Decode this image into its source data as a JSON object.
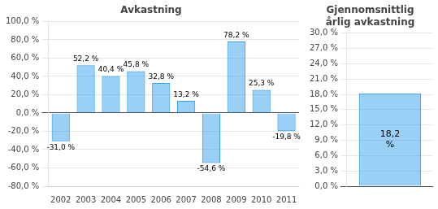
{
  "chart_data": [
    {
      "type": "bar",
      "title": "Avkastning",
      "categories": [
        "2002",
        "2003",
        "2004",
        "2005",
        "2006",
        "2007",
        "2008",
        "2009",
        "2010",
        "2011"
      ],
      "values": [
        -31.0,
        52.2,
        40.4,
        45.8,
        32.8,
        13.2,
        -54.6,
        78.2,
        25.3,
        -19.8
      ],
      "value_labels": [
        "-31,0 %",
        "52,2 %",
        "40,4 %",
        "45,8 %",
        "32,8 %",
        "13,2 %",
        "-54,6 %",
        "78,2 %",
        "25,3 %",
        "-19,8 %"
      ],
      "data_labels": true,
      "ylim": [
        -80,
        100
      ],
      "yticks": [
        {
          "value": -80,
          "label": "-80,0 %"
        },
        {
          "value": -60,
          "label": "-60,0 %"
        },
        {
          "value": -40,
          "label": "-40,0 %"
        },
        {
          "value": -20,
          "label": "-20,0 %"
        },
        {
          "value": 0,
          "label": "0,0 %"
        },
        {
          "value": 20,
          "label": "20,0 %"
        },
        {
          "value": 40,
          "label": "40,0 %"
        },
        {
          "value": 60,
          "label": "60,0 %"
        },
        {
          "value": 80,
          "label": "80,0 %"
        },
        {
          "value": 100,
          "label": "100,0 %"
        }
      ],
      "grid": true
    },
    {
      "type": "bar",
      "title": "Gjennomsnittlig\nårlig avkastning",
      "categories": [
        null
      ],
      "values": [
        18.2
      ],
      "value_labels": [
        "18,2\n%"
      ],
      "data_labels": true,
      "ylim": [
        0,
        30
      ],
      "yticks": [
        {
          "value": 0,
          "label": "0,0 %"
        },
        {
          "value": 3,
          "label": "3,0 %"
        },
        {
          "value": 6,
          "label": "6,0 %"
        },
        {
          "value": 9,
          "label": "9,0 %"
        },
        {
          "value": 12,
          "label": "12,0 %"
        },
        {
          "value": 15,
          "label": "15,0 %"
        },
        {
          "value": 18,
          "label": "18,0 %"
        },
        {
          "value": 21,
          "label": "21,0 %"
        },
        {
          "value": 24,
          "label": "24,0 %"
        },
        {
          "value": 27,
          "label": "27,0 %"
        },
        {
          "value": 30,
          "label": "30,0 %"
        }
      ],
      "grid": true
    }
  ]
}
